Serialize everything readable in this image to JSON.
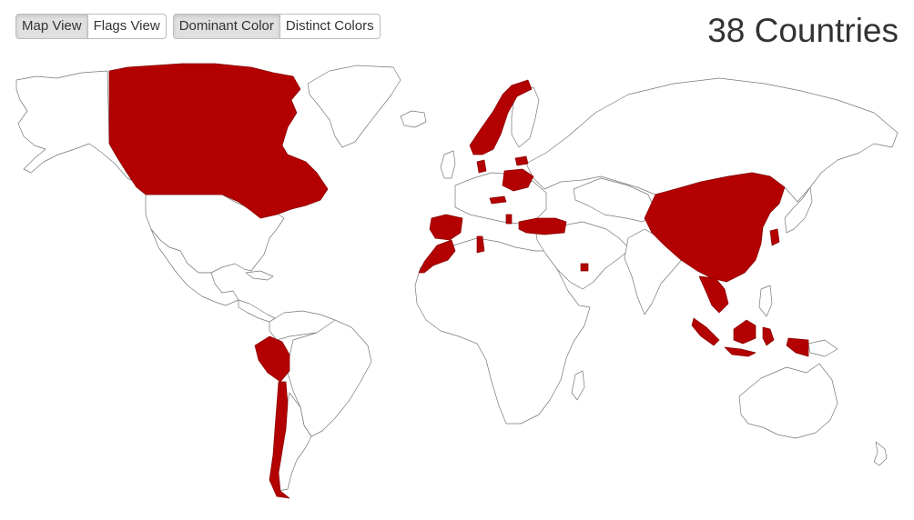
{
  "toolbar": {
    "view_modes": [
      {
        "label": "Map View",
        "active": true
      },
      {
        "label": "Flags View",
        "active": false
      }
    ],
    "color_modes": [
      {
        "label": "Dominant Color",
        "active": true
      },
      {
        "label": "Distinct Colors",
        "active": false
      }
    ]
  },
  "count_label": "38 Countries",
  "map": {
    "highlight_color": "#b30000",
    "land_color": "#ffffff",
    "border_color": "#777777"
  }
}
